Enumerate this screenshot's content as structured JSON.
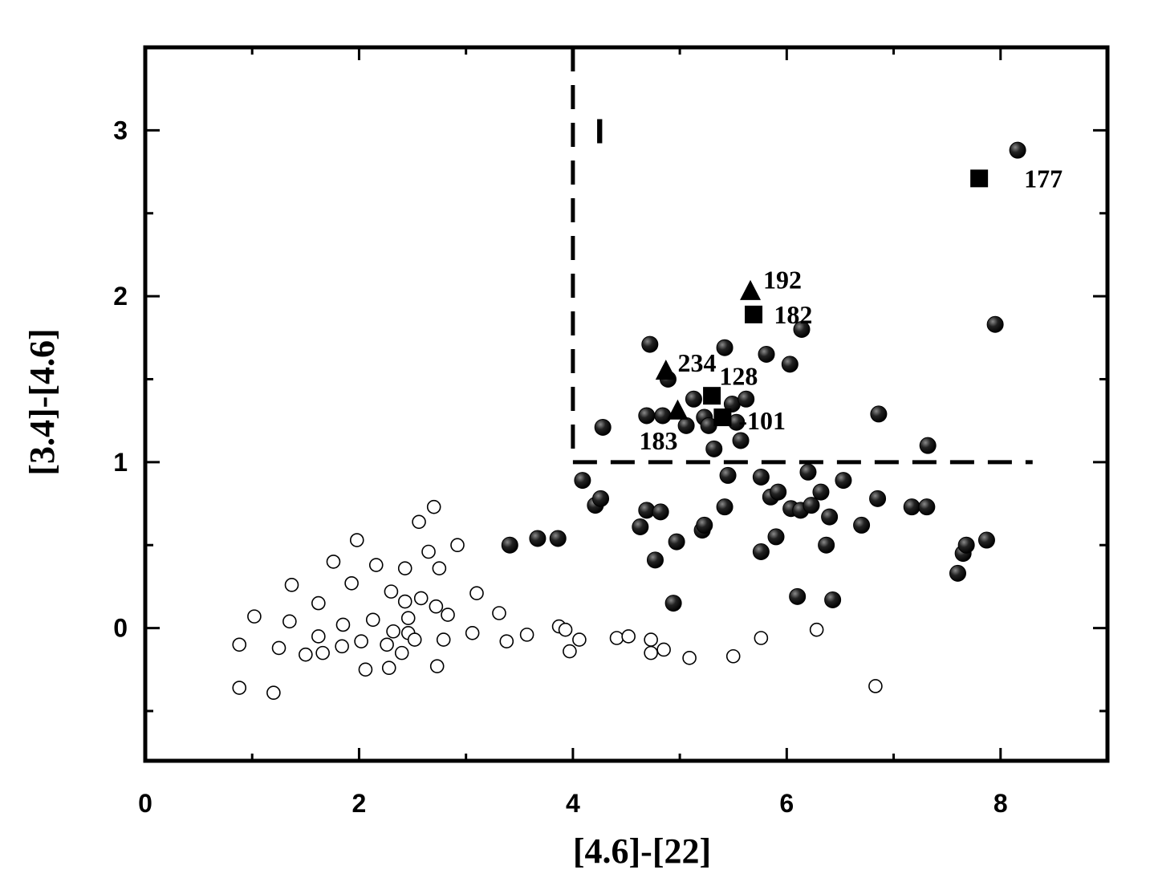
{
  "chart_data": {
    "type": "scatter",
    "xlabel": "[4.6]-[22]",
    "ylabel": "[3.4]-[4.6]",
    "xlim": [
      0,
      9
    ],
    "ylim": [
      -0.8,
      3.5
    ],
    "x_ticks": [
      0,
      2,
      4,
      6,
      8
    ],
    "y_ticks": [
      0,
      1,
      2,
      3
    ],
    "grid": false,
    "colors": {
      "ink": "#000000",
      "sphere_highlight": "#8a8a8a",
      "background": "#ffffff"
    },
    "series": [
      {
        "marker": "open-circle",
        "points": [
          [
            0.88,
            -0.1
          ],
          [
            0.88,
            -0.36
          ],
          [
            1.02,
            0.07
          ],
          [
            1.2,
            -0.39
          ],
          [
            1.25,
            -0.12
          ],
          [
            1.35,
            0.04
          ],
          [
            1.37,
            0.26
          ],
          [
            1.5,
            -0.16
          ],
          [
            1.62,
            0.15
          ],
          [
            1.62,
            -0.05
          ],
          [
            1.66,
            -0.15
          ],
          [
            1.76,
            0.4
          ],
          [
            1.84,
            -0.11
          ],
          [
            1.85,
            0.02
          ],
          [
            1.93,
            0.27
          ],
          [
            1.98,
            0.53
          ],
          [
            2.02,
            -0.08
          ],
          [
            2.06,
            -0.25
          ],
          [
            2.13,
            0.05
          ],
          [
            2.16,
            0.38
          ],
          [
            2.26,
            -0.1
          ],
          [
            2.28,
            -0.24
          ],
          [
            2.3,
            0.22
          ],
          [
            2.32,
            -0.02
          ],
          [
            2.4,
            -0.15
          ],
          [
            2.43,
            0.36
          ],
          [
            2.43,
            0.16
          ],
          [
            2.46,
            0.06
          ],
          [
            2.46,
            -0.03
          ],
          [
            2.52,
            -0.07
          ],
          [
            2.56,
            0.64
          ],
          [
            2.58,
            0.18
          ],
          [
            2.65,
            0.46
          ],
          [
            2.7,
            0.73
          ],
          [
            2.72,
            0.13
          ],
          [
            2.73,
            -0.23
          ],
          [
            2.75,
            0.36
          ],
          [
            2.79,
            -0.07
          ],
          [
            2.83,
            0.08
          ],
          [
            2.92,
            0.5
          ],
          [
            3.06,
            -0.03
          ],
          [
            3.1,
            0.21
          ],
          [
            3.31,
            0.09
          ],
          [
            3.38,
            -0.08
          ],
          [
            3.57,
            -0.04
          ],
          [
            3.87,
            0.01
          ],
          [
            3.93,
            -0.01
          ],
          [
            3.97,
            -0.14
          ],
          [
            4.06,
            -0.07
          ],
          [
            4.41,
            -0.06
          ],
          [
            4.52,
            -0.05
          ],
          [
            4.73,
            -0.07
          ],
          [
            4.73,
            -0.15
          ],
          [
            4.85,
            -0.13
          ],
          [
            5.09,
            -0.18
          ],
          [
            5.5,
            -0.17
          ],
          [
            5.76,
            -0.06
          ],
          [
            6.28,
            -0.01
          ],
          [
            6.83,
            -0.35
          ]
        ]
      },
      {
        "marker": "filled-sphere",
        "points": [
          [
            3.41,
            0.5
          ],
          [
            3.67,
            0.54
          ],
          [
            3.86,
            0.54
          ],
          [
            4.09,
            0.89
          ],
          [
            4.21,
            0.74
          ],
          [
            4.26,
            0.78
          ],
          [
            4.28,
            1.21
          ],
          [
            4.63,
            0.61
          ],
          [
            4.69,
            0.71
          ],
          [
            4.69,
            1.28
          ],
          [
            4.72,
            1.71
          ],
          [
            4.77,
            0.41
          ],
          [
            4.82,
            0.7
          ],
          [
            4.84,
            1.28
          ],
          [
            4.89,
            1.5
          ],
          [
            4.94,
            0.15
          ],
          [
            4.97,
            0.52
          ],
          [
            5.06,
            1.22
          ],
          [
            5.13,
            1.38
          ],
          [
            5.21,
            0.59
          ],
          [
            5.23,
            0.62
          ],
          [
            5.23,
            1.27
          ],
          [
            5.27,
            1.22
          ],
          [
            5.32,
            1.08
          ],
          [
            5.42,
            0.73
          ],
          [
            5.42,
            1.69
          ],
          [
            5.45,
            0.92
          ],
          [
            5.49,
            1.35
          ],
          [
            5.53,
            1.24
          ],
          [
            5.57,
            1.13
          ],
          [
            5.62,
            1.38
          ],
          [
            5.76,
            0.91
          ],
          [
            5.76,
            0.46
          ],
          [
            5.81,
            1.65
          ],
          [
            5.85,
            0.79
          ],
          [
            5.9,
            0.55
          ],
          [
            5.92,
            0.82
          ],
          [
            6.03,
            1.59
          ],
          [
            6.04,
            0.72
          ],
          [
            6.1,
            0.19
          ],
          [
            6.13,
            0.71
          ],
          [
            6.14,
            1.8
          ],
          [
            6.2,
            0.94
          ],
          [
            6.23,
            0.74
          ],
          [
            6.32,
            0.82
          ],
          [
            6.37,
            0.5
          ],
          [
            6.4,
            0.67
          ],
          [
            6.43,
            0.17
          ],
          [
            6.53,
            0.89
          ],
          [
            6.7,
            0.62
          ],
          [
            6.85,
            0.78
          ],
          [
            6.86,
            1.29
          ],
          [
            7.17,
            0.73
          ],
          [
            7.31,
            0.73
          ],
          [
            7.32,
            1.1
          ],
          [
            7.6,
            0.33
          ],
          [
            7.65,
            0.45
          ],
          [
            7.68,
            0.5
          ],
          [
            7.87,
            0.53
          ],
          [
            7.95,
            1.83
          ],
          [
            8.16,
            2.88
          ]
        ]
      },
      {
        "marker": "filled-square",
        "points": [
          [
            7.8,
            2.71
          ],
          [
            5.69,
            1.89
          ],
          [
            5.3,
            1.4
          ],
          [
            5.4,
            1.27
          ]
        ]
      },
      {
        "marker": "filled-triangle",
        "points": [
          [
            5.66,
            2.03
          ],
          [
            4.87,
            1.55
          ],
          [
            4.98,
            1.31
          ]
        ]
      }
    ],
    "annotations": [
      {
        "text": "177",
        "x": 8.22,
        "y": 2.71
      },
      {
        "text": "192",
        "x": 5.78,
        "y": 2.1
      },
      {
        "text": "182",
        "x": 5.88,
        "y": 1.89
      },
      {
        "text": "234",
        "x": 4.98,
        "y": 1.6
      },
      {
        "text": "128",
        "x": 5.37,
        "y": 1.52
      },
      {
        "text": "-101",
        "x": 5.55,
        "y": 1.25
      },
      {
        "text": "183",
        "x": 4.62,
        "y": 1.13
      }
    ],
    "region_label": {
      "text": "I",
      "x": 4.25,
      "y": 3.0
    },
    "divider": {
      "x": 4.0,
      "y": 1.0,
      "x_end": 8.3,
      "y_end": 3.5,
      "style": "dashed"
    }
  }
}
